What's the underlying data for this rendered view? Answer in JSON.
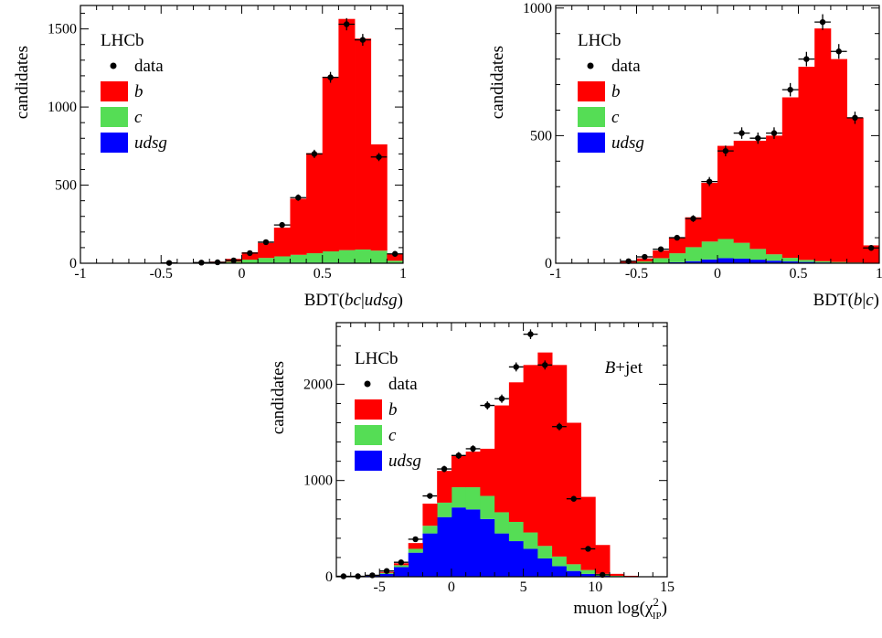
{
  "colors": {
    "b": "#ff0000",
    "c": "#55dd55",
    "udsg": "#0000ff",
    "data": "#000000"
  },
  "chart_data": [
    {
      "type": "bar",
      "stacked": true,
      "histogram": true,
      "experiment_label": "LHCb",
      "annotation": "",
      "xlabel": {
        "prefix": "BDT(",
        "italic": "bc",
        "mid": "|",
        "italic2": "udsg",
        "suffix": ")"
      },
      "ylabel": "candidates",
      "xlim": [
        -1,
        1
      ],
      "ylim": [
        0,
        1650
      ],
      "xticks": [
        -1,
        -0.5,
        0,
        0.5,
        1
      ],
      "xtick_labels": [
        "-1",
        "-0.5",
        "0",
        "0.5",
        "1"
      ],
      "yticks": [
        0,
        500,
        1000,
        1500
      ],
      "ytick_labels": [
        "0",
        "500",
        "1000",
        "1500"
      ],
      "legend_position": "top-left",
      "legend": [
        {
          "key": "data",
          "label": "data",
          "italic": false,
          "kind": "marker"
        },
        {
          "key": "b",
          "label": "b",
          "italic": true,
          "kind": "box"
        },
        {
          "key": "c",
          "label": "c",
          "italic": true,
          "kind": "box"
        },
        {
          "key": "udsg",
          "label": "udsg",
          "italic": true,
          "kind": "box"
        }
      ],
      "bin_edges": [
        -1,
        -0.9,
        -0.8,
        -0.7,
        -0.6,
        -0.5,
        -0.4,
        -0.3,
        -0.2,
        -0.1,
        0,
        0.1,
        0.2,
        0.3,
        0.4,
        0.5,
        0.6,
        0.7,
        0.8,
        0.9,
        1
      ],
      "series": [
        {
          "key": "udsg",
          "values": [
            0,
            0,
            0,
            0,
            0,
            0,
            0,
            0,
            0,
            2,
            3,
            4,
            4,
            4,
            4,
            4,
            4,
            3,
            3,
            1
          ]
        },
        {
          "key": "c",
          "values": [
            0,
            0,
            0,
            0,
            0,
            0,
            0,
            1,
            3,
            8,
            20,
            30,
            40,
            50,
            60,
            72,
            80,
            85,
            78,
            15
          ]
        },
        {
          "key": "b",
          "values": [
            0,
            0,
            0,
            0,
            0,
            0,
            0,
            2,
            7,
            18,
            47,
            96,
            184,
            359,
            641,
            1118,
            1480,
            1350,
            680,
            44
          ]
        }
      ],
      "data_points": {
        "x": [
          -0.45,
          -0.25,
          -0.15,
          -0.05,
          0.05,
          0.15,
          0.25,
          0.35,
          0.45,
          0.55,
          0.65,
          0.75,
          0.85,
          0.95
        ],
        "y": [
          2,
          4,
          6,
          18,
          65,
          135,
          245,
          420,
          700,
          1190,
          1530,
          1430,
          680,
          60
        ]
      }
    },
    {
      "type": "bar",
      "stacked": true,
      "histogram": true,
      "experiment_label": "LHCb",
      "annotation": "",
      "xlabel": {
        "prefix": "BDT(",
        "italic": "b",
        "mid": "|",
        "italic2": "c",
        "suffix": ")"
      },
      "ylabel": "candidates",
      "xlim": [
        -1,
        1
      ],
      "ylim": [
        0,
        1010
      ],
      "xticks": [
        -1,
        -0.5,
        0,
        0.5,
        1
      ],
      "xtick_labels": [
        "-1",
        "-0.5",
        "0",
        "0.5",
        "1"
      ],
      "yticks": [
        0,
        500,
        1000
      ],
      "ytick_labels": [
        "0",
        "500",
        "1000"
      ],
      "legend_position": "top-left",
      "legend": [
        {
          "key": "data",
          "label": "data",
          "italic": false,
          "kind": "marker"
        },
        {
          "key": "b",
          "label": "b",
          "italic": true,
          "kind": "box"
        },
        {
          "key": "c",
          "label": "c",
          "italic": true,
          "kind": "box"
        },
        {
          "key": "udsg",
          "label": "udsg",
          "italic": true,
          "kind": "box"
        }
      ],
      "bin_edges": [
        -1,
        -0.9,
        -0.8,
        -0.7,
        -0.6,
        -0.5,
        -0.4,
        -0.3,
        -0.2,
        -0.1,
        0,
        0.1,
        0.2,
        0.3,
        0.4,
        0.5,
        0.6,
        0.7,
        0.8,
        0.9,
        1
      ],
      "series": [
        {
          "key": "udsg",
          "values": [
            0,
            0,
            0,
            0,
            0,
            1,
            2,
            4,
            8,
            15,
            20,
            18,
            14,
            10,
            7,
            5,
            3,
            2,
            1,
            0
          ]
        },
        {
          "key": "c",
          "values": [
            0,
            0,
            0,
            0,
            2,
            6,
            18,
            35,
            55,
            70,
            75,
            62,
            42,
            25,
            14,
            8,
            5,
            3,
            2,
            1
          ]
        },
        {
          "key": "b",
          "values": [
            0,
            0,
            0,
            0,
            4,
            12,
            30,
            61,
            117,
            230,
            365,
            400,
            424,
            465,
            629,
            757,
            912,
            795,
            567,
            69
          ]
        }
      ],
      "data_points": {
        "x": [
          -0.55,
          -0.45,
          -0.35,
          -0.25,
          -0.15,
          -0.05,
          0.05,
          0.15,
          0.25,
          0.35,
          0.45,
          0.55,
          0.65,
          0.75,
          0.85,
          0.95
        ],
        "y": [
          8,
          25,
          55,
          100,
          175,
          320,
          440,
          510,
          490,
          510,
          680,
          800,
          945,
          830,
          570,
          60
        ]
      }
    },
    {
      "type": "bar",
      "stacked": true,
      "histogram": true,
      "experiment_label": "LHCb",
      "annotation": "B+jet",
      "xlabel": {
        "prefix": "muon log(χ",
        "sup": "2",
        "sub": "IP",
        "suffix": ")"
      },
      "ylabel": "candidates",
      "xlim": [
        -8,
        15
      ],
      "ylim": [
        0,
        2640
      ],
      "xticks": [
        -5,
        0,
        5,
        10,
        15
      ],
      "xtick_labels": [
        "-5",
        "0",
        "5",
        "10",
        "15"
      ],
      "yticks": [
        0,
        1000,
        2000
      ],
      "ytick_labels": [
        "0",
        "1000",
        "2000"
      ],
      "legend_position": "top-left",
      "legend": [
        {
          "key": "data",
          "label": "data",
          "italic": false,
          "kind": "marker"
        },
        {
          "key": "b",
          "label": "b",
          "italic": true,
          "kind": "box"
        },
        {
          "key": "c",
          "label": "c",
          "italic": true,
          "kind": "box"
        },
        {
          "key": "udsg",
          "label": "udsg",
          "italic": true,
          "kind": "box"
        }
      ],
      "bin_edges": [
        -8,
        -7,
        -6,
        -5,
        -4,
        -3,
        -2,
        -1,
        0,
        1,
        2,
        3,
        4,
        5,
        6,
        7,
        8,
        9,
        10,
        11,
        12,
        13,
        14,
        15
      ],
      "series": [
        {
          "key": "udsg",
          "values": [
            0,
            0,
            10,
            30,
            100,
            250,
            450,
            620,
            720,
            700,
            600,
            450,
            370,
            290,
            190,
            110,
            60,
            30,
            10,
            5,
            0,
            0,
            0
          ]
        },
        {
          "key": "c",
          "values": [
            0,
            0,
            2,
            10,
            20,
            40,
            80,
            150,
            210,
            230,
            240,
            220,
            200,
            170,
            130,
            100,
            70,
            40,
            20,
            5,
            0,
            0,
            0
          ]
        },
        {
          "key": "b",
          "values": [
            0,
            0,
            3,
            10,
            20,
            60,
            230,
            330,
            330,
            370,
            490,
            1110,
            1450,
            1740,
            2010,
            1990,
            1470,
            760,
            300,
            20,
            10,
            0,
            0
          ]
        }
      ],
      "data_points": {
        "x": [
          -7.5,
          -6.5,
          -5.5,
          -4.5,
          -3.5,
          -2.5,
          -1.5,
          -0.5,
          0.5,
          1.5,
          2.5,
          3.5,
          4.5,
          5.5,
          6.5,
          7.5,
          8.5,
          9.5,
          10.5
        ],
        "y": [
          5,
          5,
          15,
          60,
          150,
          390,
          840,
          1120,
          1260,
          1330,
          1780,
          1850,
          2180,
          2520,
          2200,
          1560,
          810,
          290,
          20
        ]
      }
    }
  ]
}
